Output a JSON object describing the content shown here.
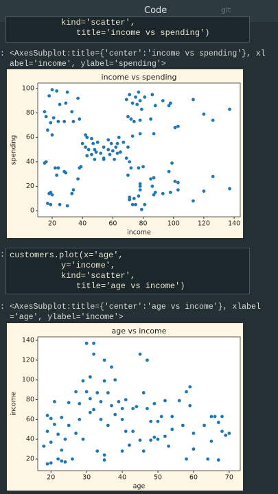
{
  "toolbar": {
    "cell_type": "Code",
    "git": "git"
  },
  "cells": [
    {
      "prompt": null,
      "lines": [
        "kind='scatter',",
        "title='income vs spending')"
      ]
    },
    {
      "prompt": ":",
      "lines": [
        "customers.plot(x='age',",
        "y='income',",
        "kind='scatter',",
        "title='age vs income')"
      ]
    }
  ],
  "outputs": [
    {
      "prompt": ":",
      "lines": [
        "<AxesSubplot:title={'center':'income vs spending'}, xl",
        "abel='income', ylabel='spending'>"
      ]
    },
    {
      "prompt": ":",
      "lines": [
        "<AxesSubplot:title={'center':'age vs income'}, xlabel",
        "='age', ylabel='income'>"
      ]
    }
  ],
  "chart_data": [
    {
      "type": "scatter",
      "title": "income vs spending",
      "x_label": "income",
      "y_label": "spending",
      "color": "#1f77b4",
      "xlim": [
        10.5,
        144
      ],
      "ylim": [
        -5,
        104.5
      ],
      "xticks": [
        20,
        40,
        60,
        80,
        100,
        120,
        140
      ],
      "yticks": [
        0,
        20,
        40,
        60,
        80,
        100
      ],
      "x": [
        15,
        16,
        18,
        19,
        20,
        21,
        23,
        24,
        25,
        28,
        29,
        30,
        33,
        34,
        37,
        38,
        17,
        20,
        15,
        16,
        17,
        18,
        19,
        19,
        20,
        22,
        23,
        24,
        25,
        28,
        30,
        33,
        34,
        37,
        39,
        38,
        29,
        40,
        42,
        43,
        44,
        46,
        47,
        48,
        48,
        49,
        50,
        54,
        54,
        57,
        58,
        59,
        60,
        61,
        62,
        63,
        64,
        65,
        67,
        69,
        70,
        71,
        72,
        42,
        43,
        46,
        52,
        54,
        57,
        63,
        69,
        70,
        71,
        72,
        73,
        74,
        75,
        76,
        77,
        78,
        78,
        79,
        81,
        85,
        86,
        87,
        88,
        93,
        97,
        98,
        101,
        103,
        113,
        120,
        126,
        137,
        73,
        78,
        70,
        71,
        71,
        73,
        74,
        75,
        77,
        78,
        78,
        78,
        79,
        81,
        85,
        86,
        87,
        87,
        88,
        93,
        97,
        98,
        99,
        101,
        103,
        103,
        113,
        120,
        126,
        137,
        77,
        80
      ],
      "y": [
        81,
        77,
        94,
        72,
        99,
        76,
        98,
        73,
        87,
        73,
        88,
        97,
        81,
        73,
        92,
        75,
        66,
        62,
        39,
        40,
        6,
        14,
        5,
        15,
        13,
        35,
        29,
        35,
        5,
        32,
        4,
        14,
        17,
        26,
        36,
        35,
        31,
        55,
        52,
        45,
        50,
        46,
        55,
        42,
        50,
        48,
        56,
        52,
        43,
        58,
        46,
        55,
        49,
        42,
        52,
        47,
        60,
        48,
        56,
        43,
        52,
        40,
        35,
        62,
        60,
        59,
        47,
        42,
        50,
        55,
        91,
        77,
        95,
        75,
        88,
        73,
        93,
        87,
        97,
        74,
        90,
        83,
        93,
        75,
        95,
        63,
        86,
        90,
        86,
        88,
        68,
        69,
        91,
        79,
        74,
        83,
        61,
        63,
        29,
        11,
        9,
        5,
        10,
        5,
        12,
        22,
        17,
        20,
        1,
        5,
        26,
        20,
        27,
        13,
        15,
        14,
        32,
        15,
        39,
        24,
        17,
        23,
        8,
        16,
        28,
        18,
        35,
        36
      ]
    },
    {
      "type": "scatter",
      "title": "age vs income",
      "x_label": "age",
      "y_label": "income",
      "color": "#1f77b4",
      "xlim": [
        16.3,
        73.1
      ],
      "ylim": [
        8.2,
        143.5
      ],
      "xticks": [
        20,
        30,
        40,
        50,
        60,
        70
      ],
      "yticks": [
        20,
        40,
        60,
        80,
        100,
        120,
        140
      ],
      "x": [
        18,
        19,
        19,
        19,
        20,
        20,
        20,
        21,
        21,
        22,
        22,
        23,
        23,
        23,
        24,
        24,
        25,
        25,
        26,
        27,
        27,
        28,
        28,
        29,
        29,
        30,
        30,
        31,
        31,
        31,
        32,
        32,
        32,
        33,
        33,
        34,
        34,
        35,
        35,
        35,
        35,
        36,
        36,
        37,
        37,
        38,
        38,
        39,
        40,
        40,
        40,
        41,
        41,
        42,
        43,
        43,
        44,
        45,
        45,
        46,
        46,
        47,
        47,
        48,
        48,
        49,
        49,
        50,
        50,
        51,
        52,
        52,
        53,
        54,
        54,
        56,
        57,
        58,
        58,
        59,
        59,
        60,
        60,
        63,
        64,
        65,
        65,
        66,
        67,
        67,
        68,
        68,
        69,
        70
      ],
      "y": [
        33,
        15,
        48,
        64,
        16,
        37,
        61,
        78,
        55,
        20,
        45,
        18,
        62,
        29,
        17,
        40,
        77,
        54,
        20,
        46,
        88,
        60,
        76,
        99,
        40,
        88,
        137,
        67,
        81,
        103,
        137,
        126,
        70,
        87,
        28,
        60,
        78,
        19,
        24,
        120,
        99,
        54,
        87,
        74,
        113,
        65,
        100,
        78,
        71,
        60,
        28,
        48,
        80,
        34,
        48,
        71,
        73,
        39,
        126,
        28,
        87,
        71,
        120,
        58,
        39,
        42,
        76,
        58,
        40,
        63,
        43,
        79,
        33,
        50,
        63,
        79,
        54,
        20,
        88,
        93,
        74,
        30,
        46,
        54,
        20,
        38,
        63,
        63,
        19,
        57,
        63,
        48,
        44,
        46
      ]
    }
  ]
}
